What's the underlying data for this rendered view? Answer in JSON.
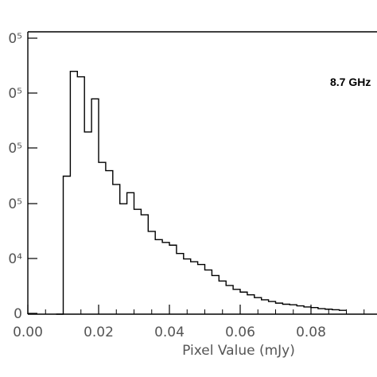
{
  "chart_data": {
    "type": "histogram-step",
    "xlabel": "Pixel Value (mJy)",
    "annotation": "8.7 GHz",
    "xlim": [
      0.0,
      0.09
    ],
    "x_ticks": [
      {
        "value": 0.0,
        "label": "0.00"
      },
      {
        "value": 0.02,
        "label": "0.02"
      },
      {
        "value": 0.04,
        "label": "0.04"
      },
      {
        "value": 0.06,
        "label": "0.06"
      },
      {
        "value": 0.08,
        "label": "0.08"
      }
    ],
    "y_tick_labels": [
      {
        "level": 6,
        "label": "0⁵"
      },
      {
        "level": 5,
        "label": "0⁵"
      },
      {
        "level": 4,
        "label": "0⁵"
      },
      {
        "level": 3,
        "label": "0⁵"
      },
      {
        "level": 2,
        "label": "0⁴"
      },
      {
        "level": 1,
        "label": "0"
      }
    ],
    "bin_width": 0.002,
    "bins_start": [
      0.008,
      0.01,
      0.012,
      0.014,
      0.016,
      0.018,
      0.02,
      0.022,
      0.024,
      0.026,
      0.028,
      0.03,
      0.032,
      0.034,
      0.036,
      0.038,
      0.04,
      0.042,
      0.044,
      0.046,
      0.048,
      0.05,
      0.052,
      0.054,
      0.056,
      0.058,
      0.06,
      0.062,
      0.064,
      0.066,
      0.068,
      0.07,
      0.072,
      0.074,
      0.076,
      0.078,
      0.08,
      0.082,
      0.084,
      0.086,
      0.088
    ],
    "counts_relative": [
      0.0,
      2.5,
      4.4,
      4.3,
      3.3,
      3.9,
      2.75,
      2.6,
      2.35,
      2.0,
      2.2,
      1.9,
      1.8,
      1.5,
      1.35,
      1.3,
      1.25,
      1.1,
      1.0,
      0.95,
      0.9,
      0.8,
      0.7,
      0.6,
      0.52,
      0.45,
      0.4,
      0.35,
      0.3,
      0.26,
      0.23,
      0.2,
      0.18,
      0.17,
      0.15,
      0.13,
      0.12,
      0.1,
      0.09,
      0.08,
      0.07
    ],
    "y_range_relative": [
      0.0,
      5.0
    ],
    "grid": false
  }
}
